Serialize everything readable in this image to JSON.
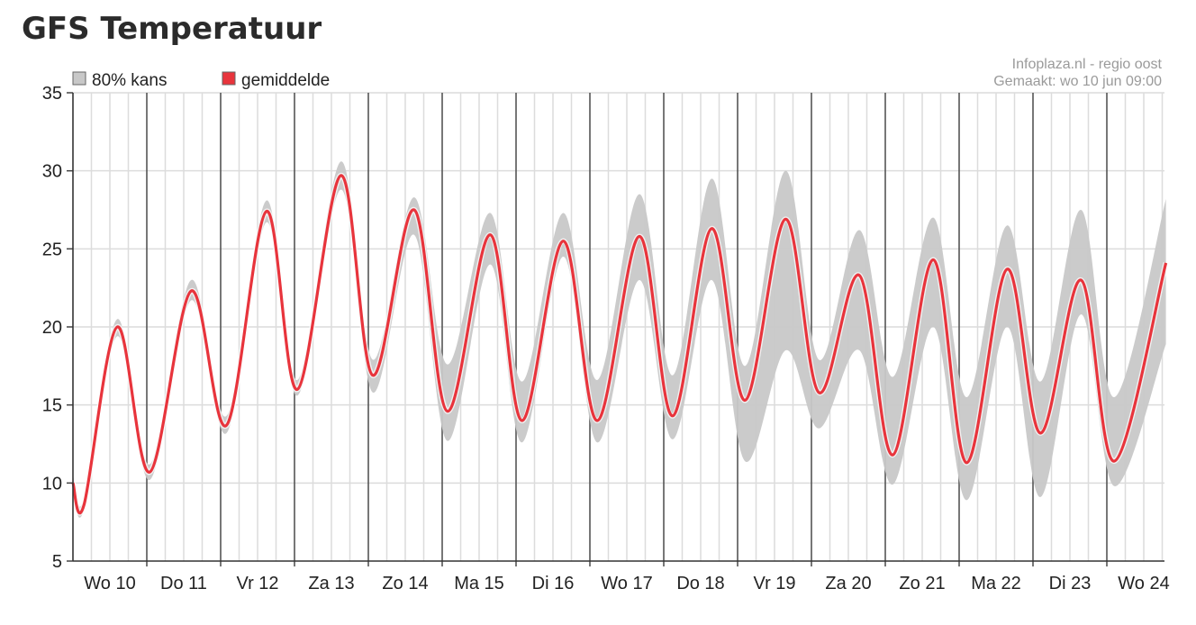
{
  "page": {
    "title": "GFS Temperatuur"
  },
  "credits": {
    "source": "Infoplaza.nl - regio oost",
    "made": "Gemaakt: wo 10 jun 09:00"
  },
  "legend": {
    "band": {
      "label": "80% kans",
      "color": "#c8c8c8"
    },
    "mean": {
      "label": "gemiddelde",
      "color": "#e8343c"
    }
  },
  "colors": {
    "mean_line": "#e8343c",
    "band": "#c8c8c8",
    "grid": "#dcdcdc",
    "day_line": "#555555"
  },
  "chart_data": {
    "type": "line",
    "title": "GFS Temperatuur",
    "xlabel": "",
    "ylabel": "",
    "ylim": [
      5,
      35
    ],
    "yticks": [
      5,
      10,
      15,
      20,
      25,
      30,
      35
    ],
    "x_unit": "days since Wo 10 00:00",
    "xlim": [
      0,
      14.8
    ],
    "categories": [
      "Wo 10",
      "Do 11",
      "Vr 12",
      "Za 13",
      "Zo 14",
      "Ma 15",
      "Di 16",
      "Wo 17",
      "Do 18",
      "Vr 19",
      "Za 20",
      "Zo 21",
      "Ma 22",
      "Di 23",
      "Wo 24"
    ],
    "grid": true,
    "legend_position": "top-left",
    "series": [
      {
        "name": "gemiddelde",
        "x": [
          0.0,
          0.15,
          0.6,
          1.04,
          1.6,
          2.08,
          2.62,
          3.04,
          3.63,
          4.06,
          4.62,
          5.07,
          5.65,
          6.08,
          6.64,
          7.1,
          7.67,
          8.12,
          8.65,
          9.1,
          9.65,
          10.1,
          10.65,
          11.1,
          11.65,
          12.1,
          12.65,
          13.1,
          13.65,
          14.1,
          14.8
        ],
        "y": [
          10.0,
          8.6,
          20.0,
          10.7,
          22.3,
          13.7,
          27.4,
          16.0,
          29.7,
          16.9,
          27.5,
          14.6,
          25.9,
          14.0,
          25.5,
          14.0,
          25.8,
          14.3,
          26.3,
          15.3,
          26.9,
          15.8,
          23.3,
          11.8,
          24.3,
          11.3,
          23.7,
          13.2,
          23.0,
          11.4,
          24.1
        ]
      },
      {
        "name": "80% kans",
        "kind": "band",
        "x": [
          0.0,
          0.15,
          0.6,
          1.04,
          1.6,
          2.08,
          2.62,
          3.04,
          3.63,
          4.06,
          4.62,
          5.07,
          5.65,
          6.08,
          6.64,
          7.1,
          7.67,
          8.12,
          8.65,
          9.1,
          9.65,
          10.1,
          10.65,
          11.1,
          11.65,
          12.1,
          12.65,
          13.1,
          13.65,
          14.1,
          14.8
        ],
        "low": [
          9.6,
          8.3,
          19.4,
          10.2,
          21.7,
          13.2,
          26.7,
          15.6,
          28.8,
          15.8,
          25.9,
          12.7,
          24.0,
          12.6,
          24.5,
          12.6,
          23.0,
          12.8,
          23.0,
          11.4,
          18.5,
          13.5,
          18.5,
          9.9,
          20.0,
          8.9,
          20.0,
          9.1,
          20.8,
          9.8,
          18.9
        ],
        "high": [
          10.5,
          9.0,
          20.5,
          11.2,
          23.0,
          14.3,
          28.1,
          16.6,
          30.6,
          17.9,
          28.3,
          17.6,
          27.3,
          16.5,
          27.3,
          16.6,
          28.5,
          16.9,
          29.5,
          17.5,
          30.0,
          17.9,
          26.2,
          16.8,
          27.0,
          15.5,
          26.5,
          16.5,
          27.5,
          15.5,
          28.2
        ]
      }
    ]
  }
}
